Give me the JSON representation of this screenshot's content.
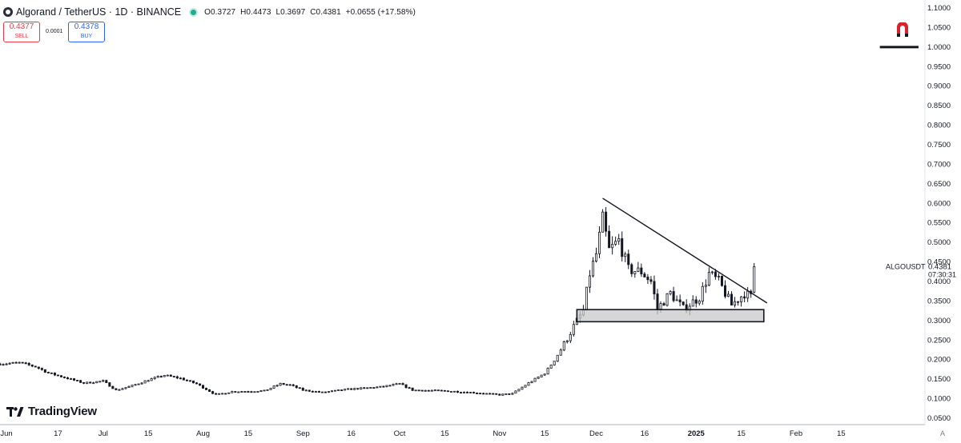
{
  "header": {
    "title": "Algorand / TetherUS · 1D · BINANCE",
    "open": "O0.3727",
    "high": "H0.4473",
    "low": "L0.3697",
    "close": "C0.4381",
    "change": "+0.0655 (+17.58%)"
  },
  "trade": {
    "sell_price": "0.4377",
    "sell_label": "SELL",
    "spread": "0.0001",
    "buy_price": "0.4378",
    "buy_label": "BUY"
  },
  "brand": {
    "name": "TradingView"
  },
  "price_label": {
    "symbol": "ALGOUSDT",
    "price": "0.4381",
    "countdown": "07:30:31"
  },
  "corner_label": "A",
  "colors": {
    "candle": "#131722",
    "accent_green": "#22ab94",
    "sell_red": "#f23645",
    "buy_blue": "#2962ff",
    "zone_fill": "#c8c8c8"
  },
  "chart_data": {
    "type": "candlestick",
    "symbol": "ALGOUSDT",
    "timeframe": "1D",
    "ylim": [
      0.05,
      1.1
    ],
    "y_ticks": [
      "1.1000",
      "1.0500",
      "1.0000",
      "0.9500",
      "0.9000",
      "0.8500",
      "0.8000",
      "0.7500",
      "0.7000",
      "0.6500",
      "0.6000",
      "0.5500",
      "0.5000",
      "0.4500",
      "0.4000",
      "0.3500",
      "0.3000",
      "0.2500",
      "0.2000",
      "0.1500",
      "0.1000",
      "0.0500"
    ],
    "x_range": [
      "2024-05-30",
      "2025-03-13"
    ],
    "x_ticks": [
      {
        "label": "Jun",
        "date": "2024-06-01"
      },
      {
        "label": "17",
        "date": "2024-06-17"
      },
      {
        "label": "Jul",
        "date": "2024-07-01"
      },
      {
        "label": "15",
        "date": "2024-07-15"
      },
      {
        "label": "Aug",
        "date": "2024-08-01"
      },
      {
        "label": "15",
        "date": "2024-08-15"
      },
      {
        "label": "Sep",
        "date": "2024-09-01"
      },
      {
        "label": "16",
        "date": "2024-09-16"
      },
      {
        "label": "Oct",
        "date": "2024-10-01"
      },
      {
        "label": "15",
        "date": "2024-10-15"
      },
      {
        "label": "Nov",
        "date": "2024-11-01"
      },
      {
        "label": "15",
        "date": "2024-11-15"
      },
      {
        "label": "Dec",
        "date": "2024-12-01"
      },
      {
        "label": "16",
        "date": "2024-12-16"
      },
      {
        "label": "2025",
        "date": "2025-01-01"
      },
      {
        "label": "15",
        "date": "2025-01-15"
      },
      {
        "label": "Feb",
        "date": "2025-02-01"
      },
      {
        "label": "15",
        "date": "2025-02-15"
      }
    ],
    "close_path": [
      [
        "2024-05-30",
        0.189
      ],
      [
        "2024-06-05",
        0.192
      ],
      [
        "2024-06-10",
        0.182
      ],
      [
        "2024-06-14",
        0.166
      ],
      [
        "2024-06-20",
        0.152
      ],
      [
        "2024-06-25",
        0.14
      ],
      [
        "2024-07-01",
        0.145
      ],
      [
        "2024-07-05",
        0.122
      ],
      [
        "2024-07-10",
        0.133
      ],
      [
        "2024-07-15",
        0.148
      ],
      [
        "2024-07-20",
        0.16
      ],
      [
        "2024-07-25",
        0.152
      ],
      [
        "2024-07-30",
        0.138
      ],
      [
        "2024-08-05",
        0.11
      ],
      [
        "2024-08-10",
        0.118
      ],
      [
        "2024-08-20",
        0.12
      ],
      [
        "2024-08-25",
        0.138
      ],
      [
        "2024-08-28",
        0.135
      ],
      [
        "2024-09-01",
        0.122
      ],
      [
        "2024-09-07",
        0.116
      ],
      [
        "2024-09-15",
        0.124
      ],
      [
        "2024-09-25",
        0.13
      ],
      [
        "2024-10-01",
        0.138
      ],
      [
        "2024-10-05",
        0.122
      ],
      [
        "2024-10-15",
        0.12
      ],
      [
        "2024-10-25",
        0.115
      ],
      [
        "2024-11-01",
        0.11
      ],
      [
        "2024-11-05",
        0.113
      ],
      [
        "2024-11-10",
        0.14
      ],
      [
        "2024-11-15",
        0.165
      ],
      [
        "2024-11-18",
        0.198
      ],
      [
        "2024-11-21",
        0.24
      ],
      [
        "2024-11-24",
        0.285
      ],
      [
        "2024-11-27",
        0.325
      ],
      [
        "2024-11-29",
        0.42
      ],
      [
        "2024-12-01",
        0.47
      ],
      [
        "2024-12-03",
        0.56
      ],
      [
        "2024-12-05",
        0.48
      ],
      [
        "2024-12-08",
        0.505
      ],
      [
        "2024-12-11",
        0.43
      ],
      [
        "2024-12-15",
        0.425
      ],
      [
        "2024-12-18",
        0.4
      ],
      [
        "2024-12-20",
        0.33
      ],
      [
        "2024-12-24",
        0.37
      ],
      [
        "2024-12-28",
        0.33
      ],
      [
        "2025-01-02",
        0.36
      ],
      [
        "2025-01-05",
        0.42
      ],
      [
        "2025-01-08",
        0.4
      ],
      [
        "2025-01-12",
        0.34
      ],
      [
        "2025-01-16",
        0.37
      ],
      [
        "2025-01-18",
        0.36
      ],
      [
        "2025-01-19",
        0.438
      ]
    ],
    "trendline": [
      [
        "2024-12-03",
        0.613
      ],
      [
        "2025-01-23",
        0.345
      ]
    ],
    "support_zone": {
      "from": "2024-11-25",
      "to": "2025-01-22",
      "low": 0.297,
      "high": 0.328
    },
    "last_candle": {
      "date": "2025-01-19",
      "open": 0.3727,
      "high": 0.4473,
      "low": 0.3697,
      "close": 0.4381
    },
    "annotations": [
      {
        "type": "horizontal_line",
        "price": 1.0,
        "from": "2025-02-27",
        "to": "2025-03-11"
      }
    ]
  }
}
